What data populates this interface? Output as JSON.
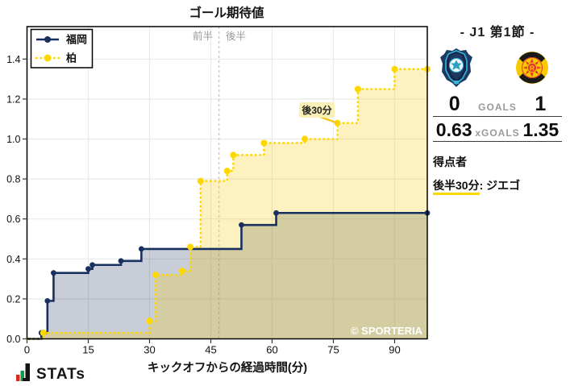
{
  "chart": {
    "title": "ゴール期待値",
    "xlabel": "キックオフからの経過時間(分)",
    "legend": [
      {
        "label": "福岡"
      },
      {
        "label": "柏"
      }
    ],
    "half_labels": {
      "first": "前半",
      "second": "後半"
    },
    "annotation_text": "後30分",
    "watermark": "© SPORTERIA",
    "x_tick_labels": [
      "0",
      "15",
      "30",
      "45",
      "60",
      "75",
      "90"
    ],
    "y_tick_labels": [
      "0.0",
      "0.2",
      "0.4",
      "0.6",
      "0.8",
      "1.0",
      "1.2",
      "1.4"
    ]
  },
  "chart_data": {
    "type": "line",
    "step": true,
    "title": "ゴール期待値",
    "xlabel": "キックオフからの経過時間(分)",
    "ylabel": "",
    "xlim": [
      0,
      98
    ],
    "ylim": [
      0,
      1.5625
    ],
    "x_ticks": [
      0,
      15,
      30,
      45,
      60,
      75,
      90
    ],
    "y_ticks": [
      0,
      0.2,
      0.4,
      0.6,
      0.8,
      1.0,
      1.2,
      1.4
    ],
    "grid": true,
    "legend_position": "upper-left",
    "halftime_x": 47,
    "series": [
      {
        "name": "福岡",
        "color": "#17305f",
        "style": "solid",
        "final_xg": 0.63,
        "points": [
          [
            0,
            0
          ],
          [
            3.5,
            0.03
          ],
          [
            5,
            0.19
          ],
          [
            6.5,
            0.33
          ],
          [
            15,
            0.35
          ],
          [
            16,
            0.37
          ],
          [
            23,
            0.39
          ],
          [
            28,
            0.45
          ],
          [
            52.5,
            0.57
          ],
          [
            61,
            0.63
          ],
          [
            98,
            0.63
          ]
        ]
      },
      {
        "name": "柏",
        "color": "#ffd700",
        "style": "dotted",
        "final_xg": 1.35,
        "points": [
          [
            0,
            0
          ],
          [
            4,
            0.03
          ],
          [
            30,
            0.09
          ],
          [
            31.5,
            0.32
          ],
          [
            38,
            0.34
          ],
          [
            40,
            0.46
          ],
          [
            42.5,
            0.79
          ],
          [
            49,
            0.84
          ],
          [
            50.5,
            0.92
          ],
          [
            58,
            0.98
          ],
          [
            68,
            1.0
          ],
          [
            76,
            1.08
          ],
          [
            81,
            1.25
          ],
          [
            90,
            1.35
          ],
          [
            98,
            1.35
          ]
        ]
      }
    ],
    "annotation": {
      "text": "後30分",
      "x": 76,
      "y": 1.08
    }
  },
  "panel": {
    "title": "- J1 第1節 -",
    "home_crest": "avispa-fukuoka",
    "away_crest": "kashiwa-reysol",
    "goals": {
      "home": "0",
      "label": "GOALS",
      "away": "1"
    },
    "xgoals": {
      "home": "0.63",
      "label": "xGOALS",
      "away": "1.35"
    },
    "scorers_heading": "得点者",
    "scorer": {
      "time": "後半30分",
      "separator": ": ",
      "name": "ジエゴ"
    }
  },
  "footer": {
    "logo_text": "STATs"
  },
  "colors": {
    "home_line": "#17305f",
    "away_line": "#ffd700",
    "home_fill": "rgba(27,47,94,0.24)",
    "away_fill": "rgba(247,208,20,0.27)",
    "grid": "#e9e9e9",
    "halftime_line": "#cccccc",
    "half_label_text": "#999999",
    "annotation_bg": "#faf0b5",
    "annotation_leader": "#f5c518",
    "scorer_underline": "#ffd700"
  }
}
